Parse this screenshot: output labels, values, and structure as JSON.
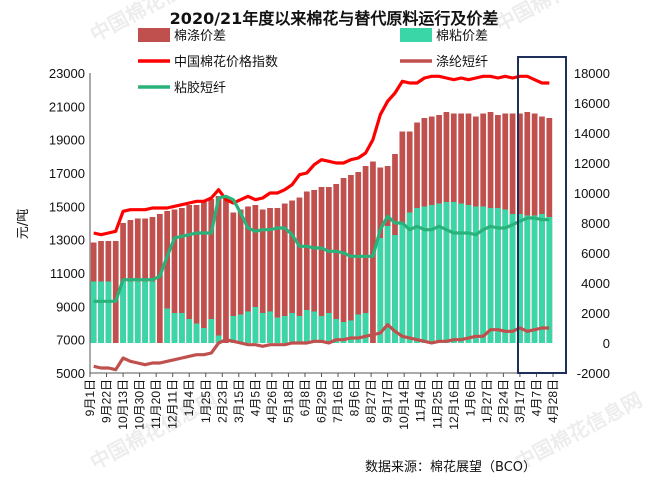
{
  "chart_data": {
    "type": "bar",
    "title": "2020/21年度以来棉花与替代原料运行及价差",
    "ylabel": "元/吨",
    "ylim_left": [
      5000,
      23000
    ],
    "ylim_right": [
      -2000,
      18000
    ],
    "yticks_left": [
      "23000",
      "21000",
      "19000",
      "17000",
      "15000",
      "13000",
      "11000",
      "9000",
      "7000",
      "5000"
    ],
    "yticks_right": [
      "18000",
      "16000",
      "14000",
      "12000",
      "10000",
      "8000",
      "6000",
      "4000",
      "2000",
      "0",
      "-2000"
    ],
    "x_ticks": [
      "9月1日",
      "9月22日",
      "10月13日",
      "10月30日",
      "11月20日",
      "12月11日",
      "1月4日",
      "1月25日",
      "2月23日",
      "3月15日",
      "4月5日",
      "4月26日",
      "5月18日",
      "6月8日",
      "6月29日",
      "7月16日",
      "8月6日",
      "8月27日",
      "9月17日",
      "10月14日",
      "11月4日",
      "11月25日",
      "12月16日",
      "1月6日",
      "1月27日",
      "2月24日",
      "3月17日",
      "4月7日",
      "4月28日"
    ],
    "source": "数据来源：棉花展望（BCO）",
    "series": [
      {
        "name": "棉涤价差",
        "axis": "right",
        "kind": "bar",
        "color": "#c0504d",
        "values": [
          6700,
          6800,
          6800,
          6800,
          8000,
          8200,
          8300,
          8300,
          8400,
          8600,
          8800,
          8900,
          9000,
          9200,
          9200,
          9400,
          9600,
          9800,
          9800,
          8700,
          8900,
          9100,
          9200,
          8900,
          9000,
          9000,
          9300,
          9500,
          9700,
          10100,
          10200,
          10400,
          10400,
          10600,
          11000,
          11200,
          11400,
          11800,
          12100,
          11700,
          11800,
          12600,
          14100,
          14100,
          14700,
          15000,
          15100,
          15200,
          15400,
          15300,
          15300,
          15300,
          15100,
          15300,
          15400,
          15200,
          15300,
          15300,
          15300,
          15400,
          15300,
          15100,
          15000
        ]
      },
      {
        "name": "棉粘价差",
        "axis": "right",
        "kind": "bar",
        "color": "#3bd6a8",
        "values": [
          4100,
          4100,
          4100,
          0,
          4100,
          4100,
          4100,
          4100,
          4100,
          0,
          2300,
          2000,
          2000,
          1600,
          1300,
          1000,
          1600,
          500,
          0,
          1800,
          1900,
          2100,
          2400,
          2000,
          2100,
          1700,
          1800,
          2000,
          1800,
          2200,
          2100,
          1800,
          2000,
          1600,
          1400,
          1500,
          1900,
          2000,
          0,
          7000,
          7800,
          7200,
          8000,
          8700,
          9000,
          9100,
          9200,
          9300,
          9400,
          9400,
          9300,
          9200,
          9100,
          9100,
          9000,
          9000,
          8900,
          8600,
          8600,
          8500,
          8500,
          8600,
          8400
        ]
      },
      {
        "name": "中国棉花价格指数",
        "axis": "left",
        "kind": "line",
        "color": "#ff0000",
        "values": [
          13400,
          13300,
          13400,
          13500,
          14700,
          14800,
          14800,
          14800,
          14900,
          14900,
          14900,
          15000,
          15100,
          15200,
          15300,
          15300,
          15500,
          16000,
          15400,
          15200,
          15400,
          15600,
          15400,
          15500,
          15800,
          15800,
          16000,
          16300,
          16900,
          17000,
          17500,
          17800,
          17700,
          17600,
          17600,
          17800,
          17900,
          18200,
          19000,
          20500,
          21300,
          21800,
          22500,
          22400,
          22400,
          22700,
          22800,
          22800,
          22700,
          22600,
          22700,
          22600,
          22700,
          22800,
          22800,
          22700,
          22800,
          22700,
          22800,
          22800,
          22600,
          22400,
          22400
        ]
      },
      {
        "name": "涤纶短纤",
        "axis": "left",
        "kind": "line",
        "color": "#c0504d",
        "values": [
          5400,
          5300,
          5300,
          5200,
          5900,
          5700,
          5600,
          5500,
          5600,
          5600,
          5700,
          5800,
          5900,
          6000,
          6100,
          6100,
          6200,
          6800,
          7000,
          6900,
          6800,
          6700,
          6700,
          6600,
          6700,
          6700,
          6700,
          6800,
          6800,
          6800,
          6900,
          6900,
          6800,
          7000,
          7000,
          7100,
          7100,
          7200,
          7300,
          7400,
          7900,
          7500,
          7200,
          7100,
          7000,
          6900,
          6800,
          6900,
          6900,
          7000,
          7000,
          7100,
          7200,
          7200,
          7600,
          7600,
          7500,
          7500,
          7700,
          7500,
          7600,
          7700,
          7700
        ]
      },
      {
        "name": "粘胶短纤",
        "axis": "left",
        "kind": "line",
        "color": "#2ab27b",
        "values": [
          9300,
          9300,
          9300,
          9300,
          10600,
          10600,
          10600,
          10600,
          10600,
          10800,
          12000,
          13100,
          13200,
          13300,
          13400,
          13400,
          13400,
          15500,
          15600,
          15400,
          14600,
          13700,
          13500,
          13600,
          13600,
          13700,
          13700,
          13300,
          12600,
          12600,
          12500,
          12500,
          12300,
          12300,
          12200,
          12000,
          12000,
          12000,
          12000,
          13600,
          14400,
          14000,
          14000,
          13600,
          13800,
          13600,
          13600,
          13800,
          13600,
          13400,
          13400,
          13400,
          13300,
          13600,
          13800,
          13700,
          13700,
          13900,
          14100,
          14300,
          14300,
          14200,
          14200
        ]
      }
    ]
  },
  "legend_order": [
    "棉涤价差",
    "棉粘价差",
    "中国棉花价格指数",
    "涤纶短纤",
    "粘胶短纤"
  ],
  "watermark_text": "中国棉花信息网",
  "colors": {
    "frame": "#1f2f5b",
    "axis": "#555555"
  }
}
